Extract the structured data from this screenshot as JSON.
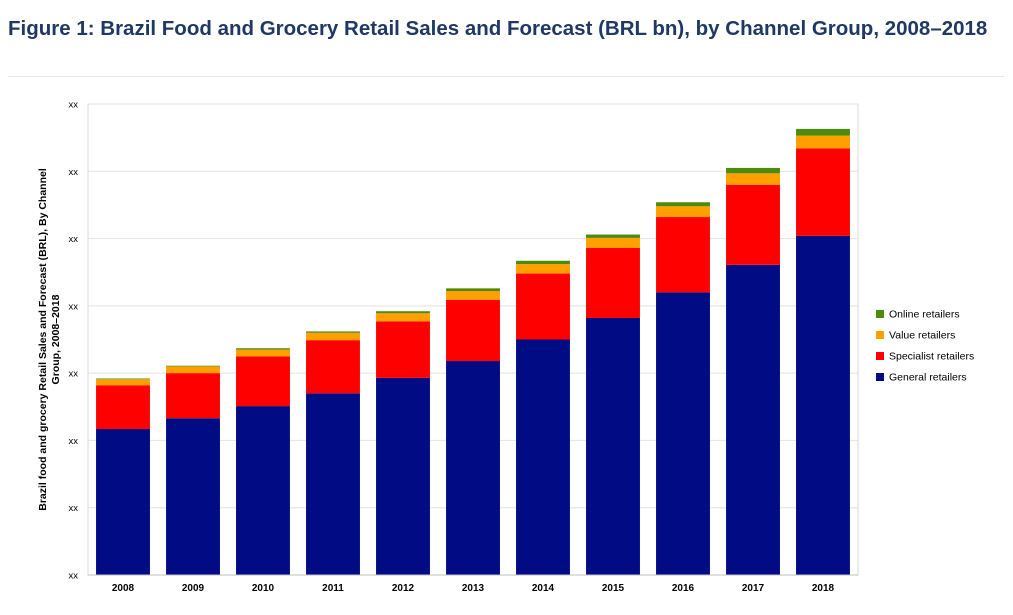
{
  "title": "Figure 1: Brazil Food and Grocery Retail Sales and Forecast (BRL bn), by Channel Group, 2008–2018",
  "chart_data": {
    "type": "bar",
    "stacked": true,
    "title": "Figure 1: Brazil Food and Grocery Retail Sales and Forecast (BRL bn), by Channel Group, 2008–2018",
    "xlabel": "",
    "ylabel": "Brazil food and grocery Retail Sales and Forecast (BRL), By Channel Group, 2008–2018",
    "categories": [
      "2008",
      "2009",
      "2010",
      "2011",
      "2012",
      "2013",
      "2014",
      "2015",
      "2016",
      "2017",
      "2018"
    ],
    "y_tick_labels": [
      "xx",
      "xx",
      "xx",
      "xx",
      "xx",
      "xx",
      "xx",
      "xx"
    ],
    "ylim": [
      0,
      7
    ],
    "grid": true,
    "legend_position": "right",
    "series": [
      {
        "name": "General retailers",
        "color": "#000b84",
        "values": [
          2.17,
          2.33,
          2.51,
          2.7,
          2.93,
          3.18,
          3.5,
          3.82,
          4.2,
          4.61,
          5.04
        ]
      },
      {
        "name": "Specialist retailers",
        "color": "#ff0000",
        "values": [
          0.65,
          0.67,
          0.74,
          0.79,
          0.84,
          0.91,
          0.98,
          1.04,
          1.12,
          1.19,
          1.3
        ]
      },
      {
        "name": "Value retailers",
        "color": "#ffa000",
        "values": [
          0.09,
          0.1,
          0.1,
          0.11,
          0.12,
          0.13,
          0.14,
          0.15,
          0.16,
          0.17,
          0.19
        ]
      },
      {
        "name": "Online retailers",
        "color": "#4e8a0c",
        "values": [
          0.01,
          0.01,
          0.02,
          0.02,
          0.03,
          0.04,
          0.05,
          0.05,
          0.06,
          0.08,
          0.1
        ]
      }
    ],
    "legend_order": [
      "Online retailers",
      "Value retailers",
      "Specialist retailers",
      "General retailers"
    ]
  }
}
